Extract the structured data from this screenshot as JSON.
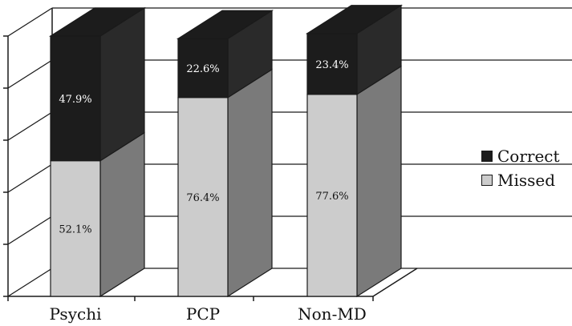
{
  "chart_data": {
    "type": "bar",
    "stacked": true,
    "three_d": true,
    "categories": [
      "Psychi",
      "PCP",
      "Non-MD"
    ],
    "series": [
      {
        "name": "Missed",
        "values": [
          52.1,
          76.4,
          77.6
        ],
        "labels": [
          "52.1%",
          "76.4%",
          "77.6%"
        ],
        "color": "#cccccc"
      },
      {
        "name": "Correct",
        "values": [
          47.9,
          22.6,
          23.4
        ],
        "labels": [
          "47.9%",
          "22.6%",
          "23.4%"
        ],
        "color": "#1c1c1c"
      }
    ],
    "ylim": [
      0,
      100
    ],
    "grid": true,
    "legend_position": "right"
  },
  "colors": {
    "missed_front": "#cccccc",
    "missed_side": "#7a7a7a",
    "correct_front": "#1c1c1c",
    "correct_side": "#2a2a2a",
    "correct_label": "#ffffff",
    "missed_label": "#111111"
  }
}
